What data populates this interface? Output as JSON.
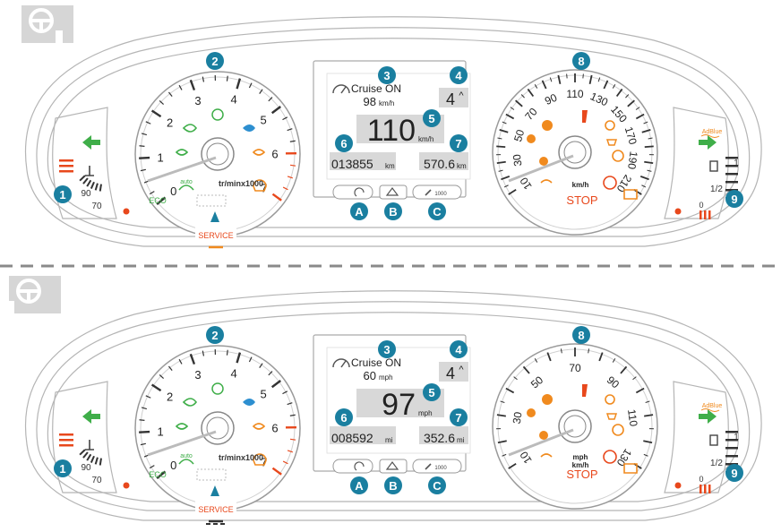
{
  "colors": {
    "callout": "#1a7fa0",
    "warn": "#e8481c",
    "amber": "#f08a1e",
    "green": "#3fae49",
    "gray": "#9a9a9a",
    "blue": "#2d8fd0"
  },
  "callouts": {
    "n1": "1",
    "n2": "2",
    "n3": "3",
    "n4": "4",
    "n5": "5",
    "n6": "6",
    "n7": "7",
    "n8": "8",
    "n9": "9",
    "a": "A",
    "b": "B",
    "c": "C"
  },
  "panels": [
    {
      "cruise_label": "Cruise ON",
      "cruise_speed": "98",
      "cruise_unit": "km/h",
      "gear": "4",
      "gear_arrow": "^",
      "speed": "110",
      "speed_unit": "km/h",
      "odometer": "013855",
      "odo_unit": "km",
      "trip": "570.6",
      "trip_unit": "km",
      "speedo_unit": "km/h",
      "speedo_ticks": [
        "10",
        "30",
        "50",
        "70",
        "90",
        "110",
        "130",
        "150",
        "170",
        "190",
        "210"
      ],
      "tacho_ticks": [
        "0",
        "1",
        "2",
        "3",
        "4",
        "5",
        "6",
        "7"
      ],
      "tacho_unit": "tr/minx1000",
      "temp_90": "90",
      "temp_70": "70",
      "fuel_1": "1",
      "fuel_half": "1/2",
      "fuel_0": "0",
      "stop": "STOP",
      "eco": "ECO",
      "auto": "auto",
      "adblue": "AdBlue",
      "service": "SERVICE",
      "key_c": "1000"
    },
    {
      "cruise_label": "Cruise ON",
      "cruise_speed": "60",
      "cruise_unit": "mph",
      "gear": "4",
      "gear_arrow": "^",
      "speed": "97",
      "speed_unit": "mph",
      "odometer": "008592",
      "odo_unit": "mi",
      "trip": "352.6",
      "trip_unit": "mi",
      "speedo_unit": "mph\nkm/h",
      "speedo_unit_1": "mph",
      "speedo_unit_2": "km/h",
      "speedo_ticks": [
        "10",
        "30",
        "50",
        "70",
        "90",
        "110",
        "130"
      ],
      "tacho_ticks": [
        "0",
        "1",
        "2",
        "3",
        "4",
        "5",
        "6",
        "7"
      ],
      "tacho_unit": "tr/minx1000",
      "temp_90": "90",
      "temp_70": "70",
      "fuel_1": "1",
      "fuel_half": "1/2",
      "fuel_0": "0",
      "stop": "STOP",
      "eco": "ECO",
      "auto": "auto",
      "adblue": "AdBlue",
      "service": "SERVICE",
      "key_c": "1000"
    }
  ]
}
